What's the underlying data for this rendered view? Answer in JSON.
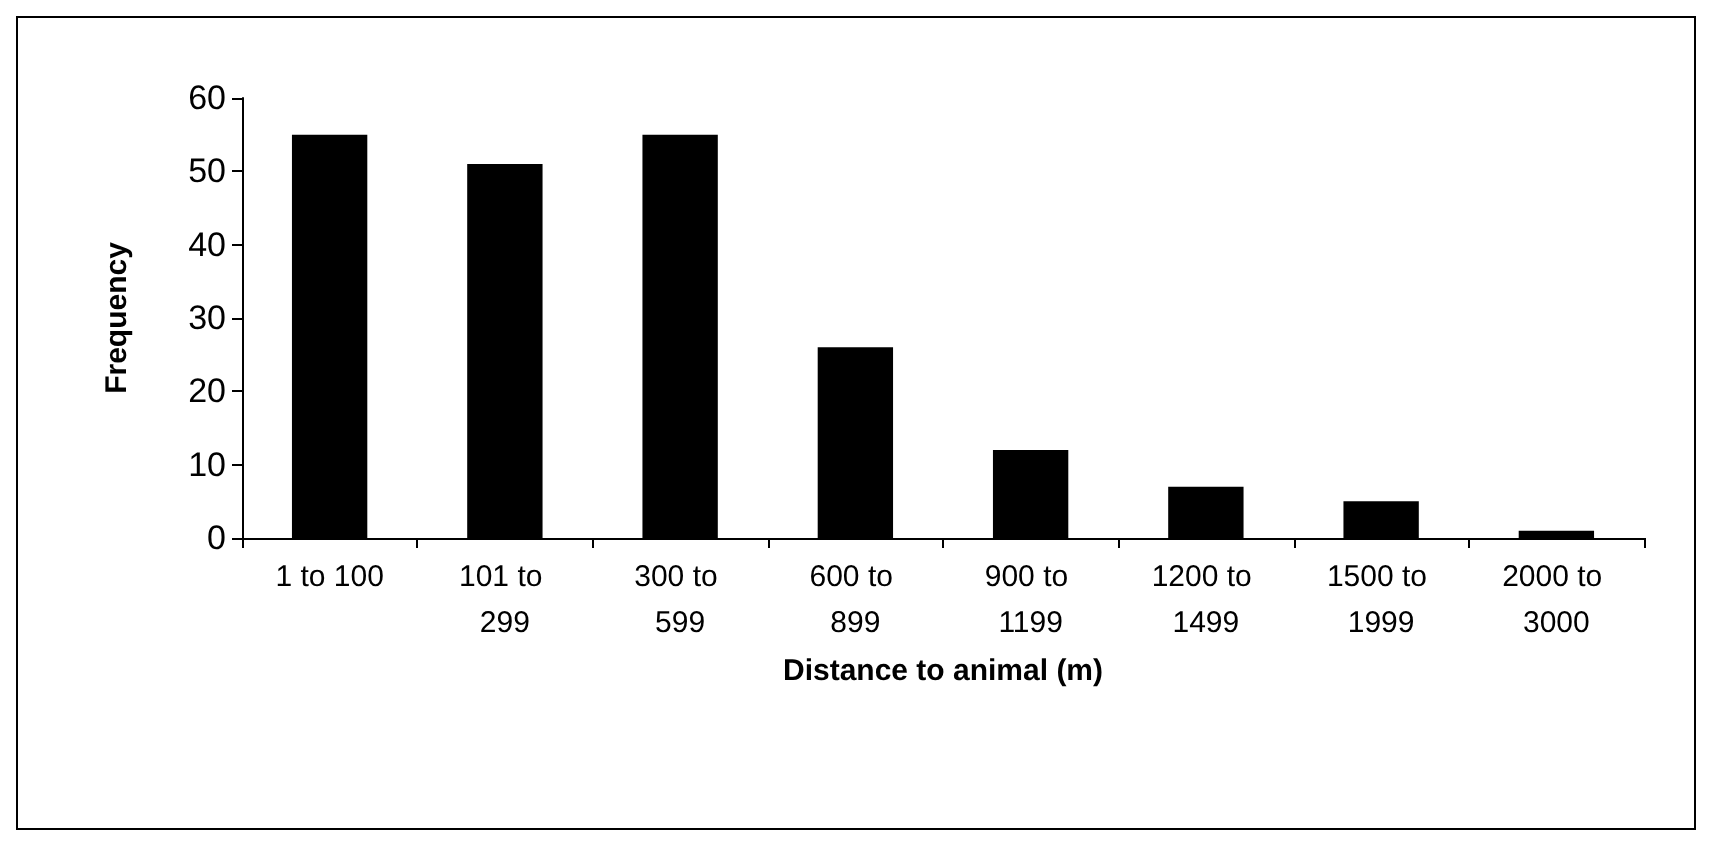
{
  "chart_data": {
    "type": "bar",
    "xlabel": "Distance to animal (m)",
    "ylabel": "Frequency",
    "categories": [
      "1 to 100",
      "101 to 299",
      "300 to 599",
      "600 to 899",
      "900 to 1199",
      "1200 to 1499",
      "1500 to 1999",
      "2000 to 3000"
    ],
    "values": [
      55,
      51,
      55,
      26,
      12,
      7,
      5,
      1
    ],
    "color": "#000000",
    "ylim": [
      0,
      60
    ],
    "yticks": [
      0,
      10,
      20,
      30,
      40,
      50,
      60
    ],
    "grid": false
  }
}
